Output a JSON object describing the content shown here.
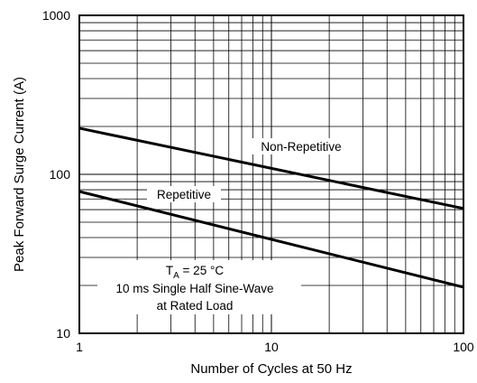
{
  "chart_data": {
    "type": "line",
    "title": "",
    "xlabel": "Number of Cycles at 50 Hz",
    "ylabel": "Peak Forward Surge Current (A)",
    "x_scale": "log",
    "y_scale": "log",
    "xlim": [
      1,
      100
    ],
    "ylim": [
      10,
      1000
    ],
    "x_ticks": [
      {
        "value": 1,
        "label": "1"
      },
      {
        "value": 10,
        "label": "10"
      },
      {
        "value": 100,
        "label": "100"
      }
    ],
    "y_ticks": [
      {
        "value": 10,
        "label": "10"
      },
      {
        "value": 100,
        "label": "100"
      },
      {
        "value": 1000,
        "label": "1000"
      }
    ],
    "grid": true,
    "series": [
      {
        "name": "Non-Repetitive",
        "x": [
          1,
          100
        ],
        "y": [
          195,
          61
        ]
      },
      {
        "name": "Repetitive",
        "x": [
          1,
          100
        ],
        "y": [
          78,
          19.5
        ]
      }
    ],
    "annotations": {
      "condition_prefix": "T",
      "condition_subscript": "A",
      "condition_suffix": " = 25 °C",
      "line2": "10 ms Single Half Sine-Wave",
      "line3": "at Rated Load"
    }
  }
}
